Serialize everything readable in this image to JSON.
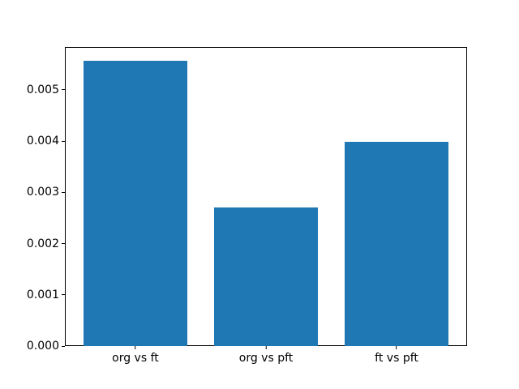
{
  "figure": {
    "background": "#ffffff",
    "spine_color": "#000000",
    "text_color": "#000000"
  },
  "chart_data": {
    "type": "bar",
    "title": "",
    "xlabel": "",
    "ylabel": "",
    "categories": [
      "org vs ft",
      "org vs pft",
      "ft vs pft"
    ],
    "values": [
      0.00557,
      0.00271,
      0.00398
    ],
    "bar_color": "#1f77b4",
    "ylim": [
      0,
      0.005838
    ],
    "xlim": [
      -0.54,
      2.54
    ],
    "bar_width_units": 0.8,
    "yticks": [
      0,
      0.001,
      0.002,
      0.003,
      0.004,
      0.005
    ],
    "ytick_labels": [
      "0.000",
      "0.001",
      "0.002",
      "0.003",
      "0.004",
      "0.005"
    ],
    "grid": false,
    "legend": null
  }
}
